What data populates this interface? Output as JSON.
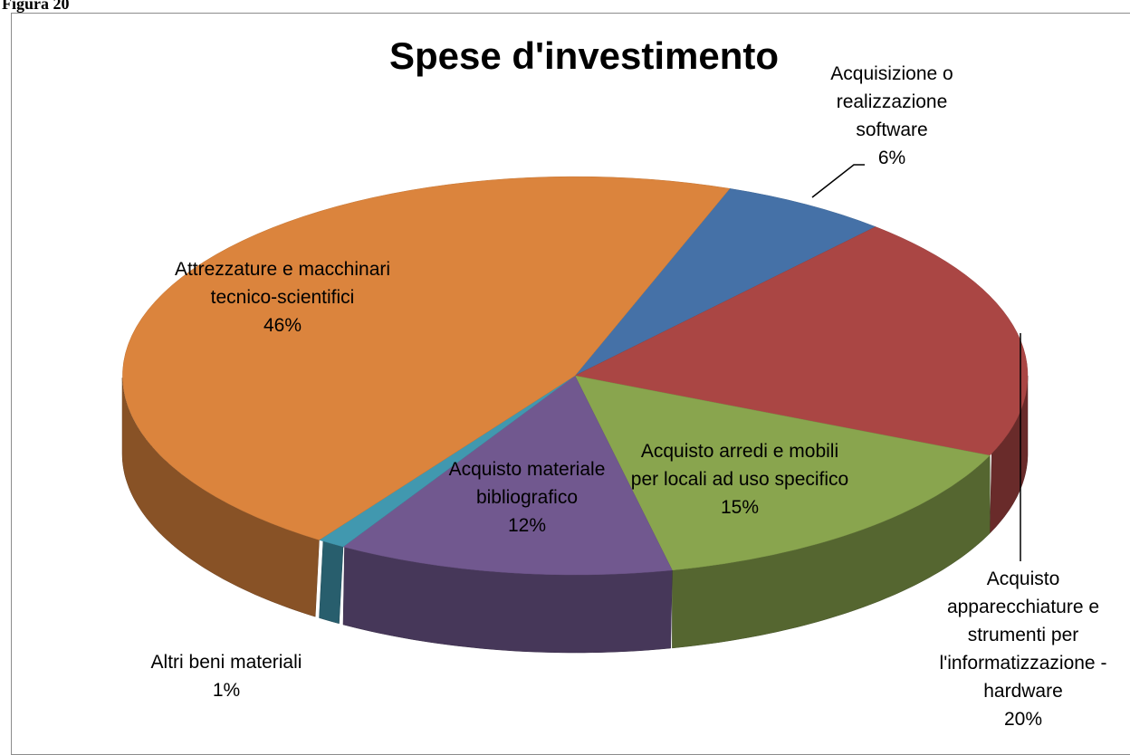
{
  "caption": "Figura 20",
  "chart_data": {
    "type": "pie3d",
    "title": "Spese d'investimento",
    "categories": [
      "Acquisizione o realizzazione software",
      "Acquisto apparecchiature e strumenti per l'informatizzazione - hardware",
      "Acquisto arredi e mobili per locali ad uso specifico",
      "Acquisto materiale bibliografico",
      "Altri beni materiali",
      "Attrezzature e macchinari tecnico-scientifici"
    ],
    "values": [
      6,
      20,
      15,
      12,
      1,
      46
    ],
    "value_labels": [
      "6%",
      "20%",
      "15%",
      "12%",
      "1%",
      "46%"
    ],
    "colors": [
      "#4571a7",
      "#aa4644",
      "#89a54e",
      "#71588f",
      "#4198af",
      "#db843d"
    ]
  }
}
